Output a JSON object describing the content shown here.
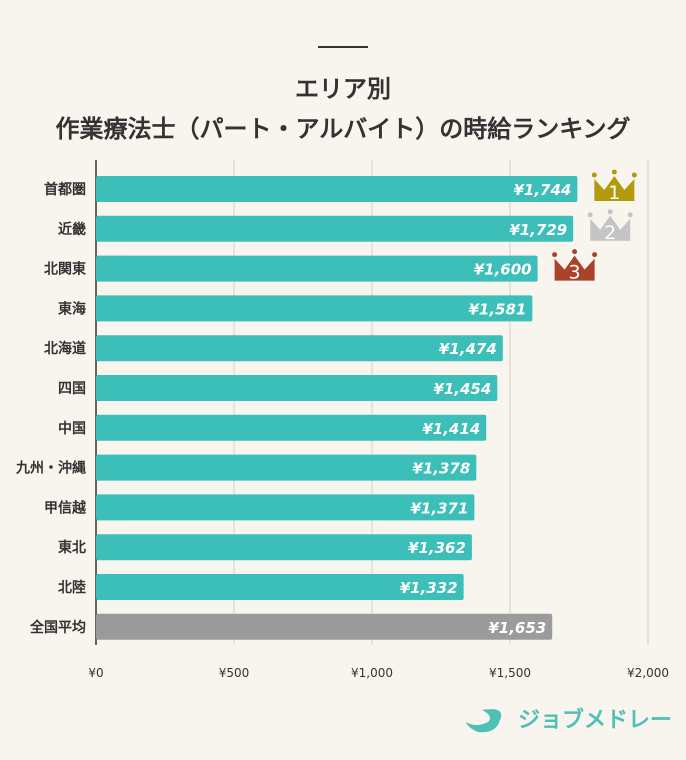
{
  "chart_data": {
    "type": "bar",
    "orientation": "horizontal",
    "title": "エリア別",
    "subtitle": "作業療法士（パート・アルバイト）の時給ランキング",
    "categories": [
      "首都圏",
      "近畿",
      "北関東",
      "東海",
      "北海道",
      "四国",
      "中国",
      "九州・沖縄",
      "甲信越",
      "東北",
      "北陸",
      "全国平均"
    ],
    "values": [
      1744,
      1729,
      1600,
      1581,
      1474,
      1454,
      1414,
      1378,
      1371,
      1362,
      1332,
      1653
    ],
    "value_labels": [
      "¥1,744",
      "¥1,729",
      "¥1,600",
      "¥1,581",
      "¥1,474",
      "¥1,454",
      "¥1,414",
      "¥1,378",
      "¥1,371",
      "¥1,362",
      "¥1,332",
      "¥1,653"
    ],
    "xlim": [
      0,
      2000
    ],
    "x_ticks": [
      "¥0",
      "¥500",
      "¥1,000",
      "¥1,500",
      "¥2,000"
    ],
    "x_tick_values": [
      0,
      500,
      1000,
      1500,
      2000
    ],
    "grid": true,
    "ranks": [
      "1",
      "2",
      "3"
    ],
    "colors": {
      "bar": "#3bbfb8",
      "average": "#9b9b9b",
      "gold": "#b19b0c",
      "silver": "#c4c4c4",
      "bronze": "#a9442b",
      "grid": "#d3d0ca",
      "background": "#f8f5ef"
    }
  },
  "logo": {
    "text": "ジョブメドレー"
  }
}
